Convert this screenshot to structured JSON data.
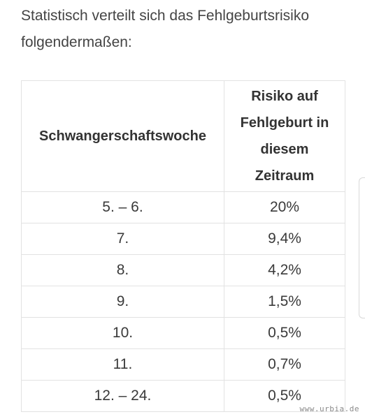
{
  "intro_text": "Statistisch verteilt sich das Fehlgeburtsrisiko folgendermaßen:",
  "table": {
    "headers": {
      "week": "Schwangerschaftswoche",
      "risk_lines": [
        "Risiko auf",
        "Fehlgeburt in",
        "diesem",
        "Zeitraum"
      ]
    },
    "rows": [
      {
        "week": "5. – 6.",
        "risk": "20%"
      },
      {
        "week": "7.",
        "risk": "9,4%"
      },
      {
        "week": "8.",
        "risk": "4,2%"
      },
      {
        "week": "9.",
        "risk": "1,5%"
      },
      {
        "week": "10.",
        "risk": "0,5%"
      },
      {
        "week": "11.",
        "risk": "0,7%"
      },
      {
        "week": "12. – 24.",
        "risk": "0,5%"
      }
    ]
  },
  "watermark": "www.urbia.de"
}
